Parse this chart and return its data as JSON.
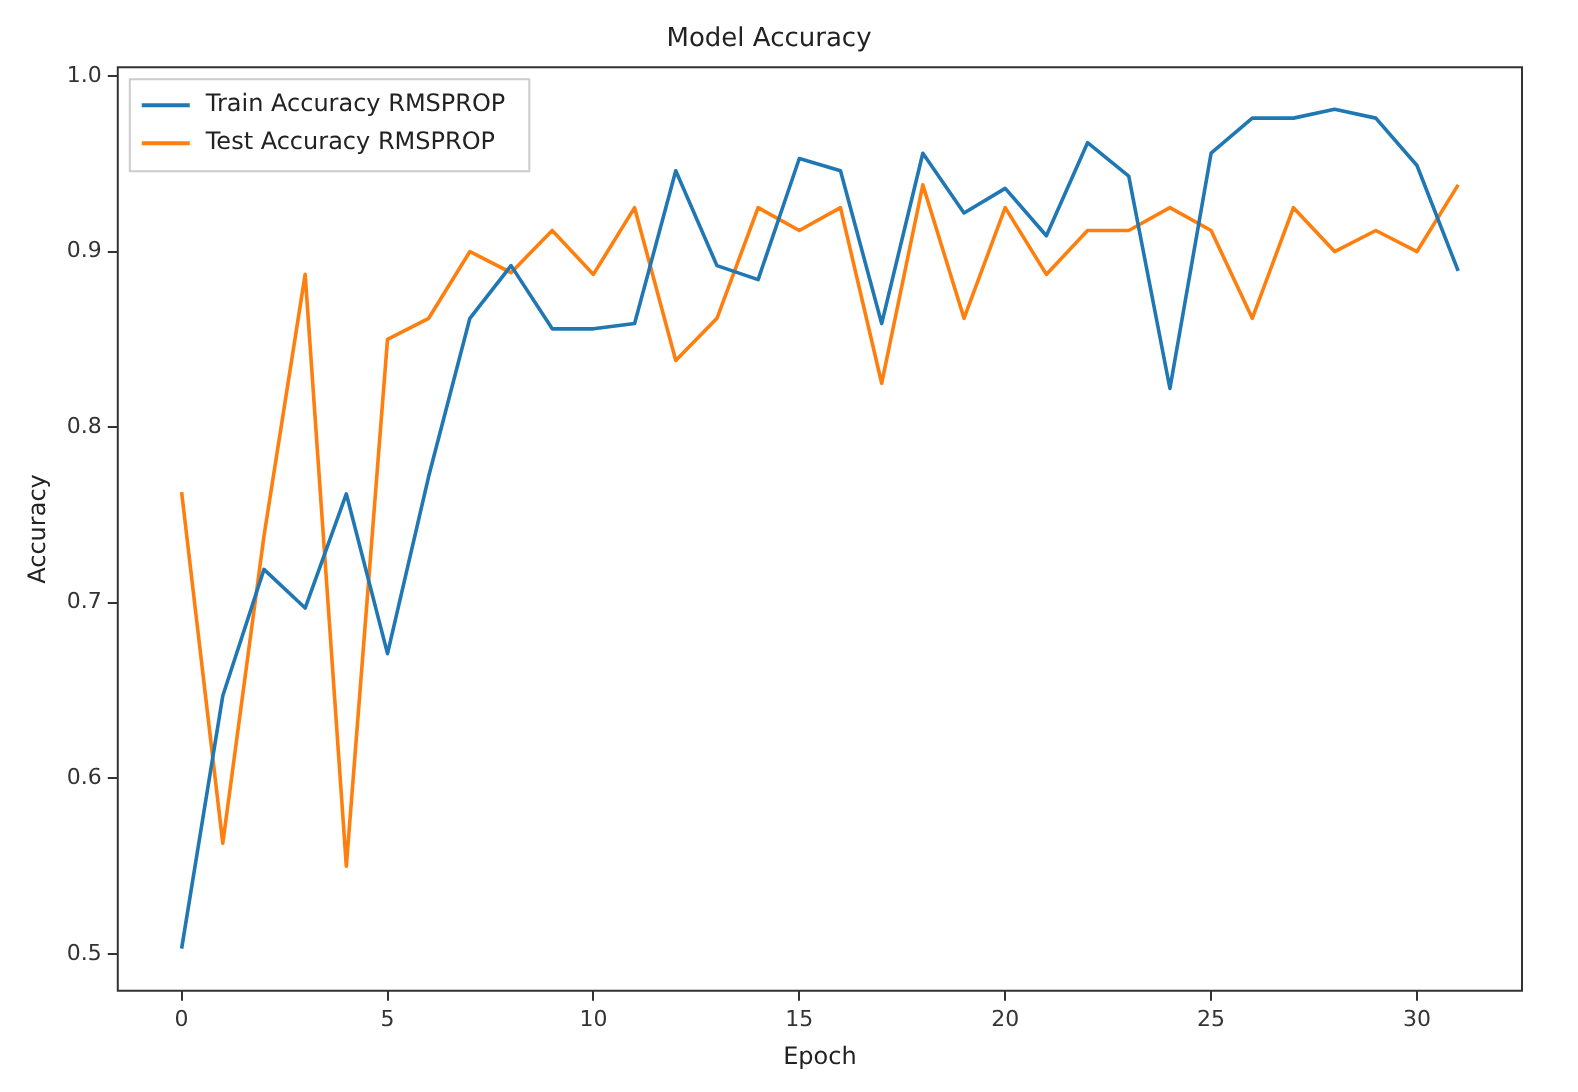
{
  "chart_data": {
    "type": "line",
    "title": "Model Accuracy",
    "xlabel": "Epoch",
    "ylabel": "Accuracy",
    "x": [
      0,
      1,
      2,
      3,
      4,
      5,
      6,
      7,
      8,
      9,
      10,
      11,
      12,
      13,
      14,
      15,
      16,
      17,
      18,
      19,
      20,
      21,
      22,
      23,
      24,
      25,
      26,
      27,
      28,
      29,
      30,
      31
    ],
    "series": [
      {
        "name": "Train Accuracy RMSPROP",
        "color": "#1f77b4",
        "values": [
          0.503,
          0.647,
          0.719,
          0.697,
          0.762,
          0.671,
          0.772,
          0.862,
          0.892,
          0.856,
          0.856,
          0.859,
          0.946,
          0.892,
          0.884,
          0.953,
          0.946,
          0.859,
          0.956,
          0.922,
          0.936,
          0.909,
          0.962,
          0.943,
          0.822,
          0.956,
          0.976,
          0.976,
          0.981,
          0.976,
          0.949,
          0.889
        ]
      },
      {
        "name": "Test Accuracy RMSPROP",
        "color": "#ff7f0e",
        "values": [
          0.763,
          0.563,
          0.738,
          0.887,
          0.55,
          0.85,
          0.862,
          0.9,
          0.888,
          0.912,
          0.887,
          0.925,
          0.838,
          0.862,
          0.925,
          0.912,
          0.925,
          0.825,
          0.938,
          0.862,
          0.925,
          0.887,
          0.912,
          0.912,
          0.925,
          0.912,
          0.862,
          0.925,
          0.9,
          0.912,
          0.9,
          0.938
        ]
      }
    ],
    "xlim": [
      -1.55,
      32.55
    ],
    "xticks": [
      0,
      5,
      10,
      15,
      20,
      25,
      30
    ],
    "ylim": [
      0.479,
      1.005
    ],
    "yticks": [
      {
        "value": 0.5,
        "label": "0.5"
      },
      {
        "value": 0.6,
        "label": "0.6"
      },
      {
        "value": 0.7,
        "label": "0.7"
      },
      {
        "value": 0.8,
        "label": "0.8"
      },
      {
        "value": 0.9,
        "label": "0.9"
      },
      {
        "value": 1.0,
        "label": "1.0"
      }
    ],
    "grid": false,
    "legend": "top left",
    "marker": "none",
    "line_style": "solid"
  }
}
